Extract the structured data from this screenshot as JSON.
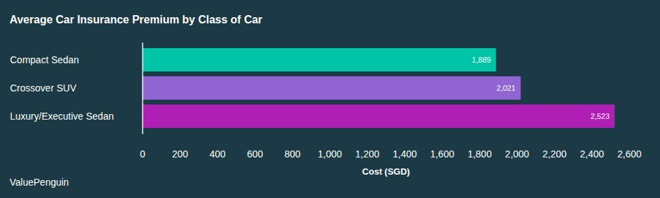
{
  "chart_data": {
    "type": "bar",
    "orientation": "horizontal",
    "title": "Average Car Insurance Premium by Class of Car",
    "xlabel": "Cost (SGD)",
    "source": "ValuePenguin",
    "categories": [
      "Compact Sedan",
      "Crossover SUV",
      "Luxury/Executive Sedan"
    ],
    "values": [
      1889,
      2021,
      2523
    ],
    "value_labels": [
      "1,889",
      "2,021",
      "2,523"
    ],
    "colors": [
      "#00c4a7",
      "#9065d1",
      "#b01fb3"
    ],
    "data_labels": true,
    "grid": false,
    "xlim": [
      0,
      2600
    ],
    "xticks": [
      0,
      200,
      400,
      600,
      800,
      {
        "value": 1000,
        "label": "1,000"
      },
      {
        "value": 1200,
        "label": "1,200"
      },
      {
        "value": 1400,
        "label": "1,400"
      },
      {
        "value": 1600,
        "label": "1,600"
      },
      {
        "value": 1800,
        "label": "1,800"
      },
      {
        "value": 2000,
        "label": "2,000"
      },
      {
        "value": 2200,
        "label": "2,200"
      },
      {
        "value": 2400,
        "label": "2,400"
      },
      {
        "value": 2600,
        "label": "2,600"
      }
    ]
  }
}
